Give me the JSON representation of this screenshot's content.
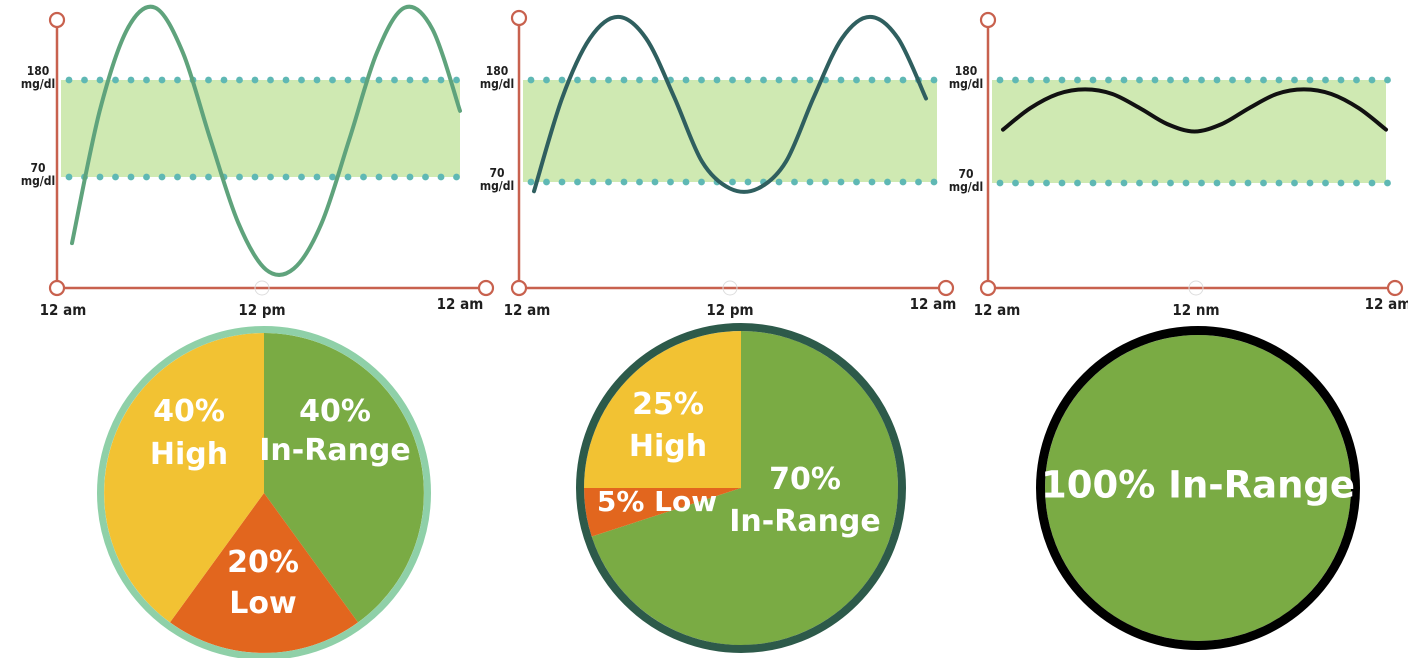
{
  "colors": {
    "axis": "#c8614e",
    "band": "#cfe9b2",
    "dots": "#5fb8b4",
    "green": "#7aab44",
    "yellow": "#f2c233",
    "orange": "#e2661e",
    "label_text": "#ffffff"
  },
  "chart_data": [
    {
      "type": "line",
      "title": "",
      "x_ticks": [
        "12 am",
        "12 pm",
        "12 am"
      ],
      "y_ticks": [
        {
          "value": 180,
          "line1": "180",
          "line2": "mg/dl"
        },
        {
          "value": 70,
          "line1": "70",
          "line2": "mg/dl"
        }
      ],
      "target_range": [
        70,
        180
      ],
      "series": [
        {
          "x": [
            0,
            1,
            2,
            3,
            4,
            5,
            6,
            7,
            8,
            9,
            10,
            11,
            12,
            13,
            14,
            15,
            16,
            17,
            18,
            19,
            20,
            21,
            22,
            23,
            24
          ],
          "y": [
            -5,
            145,
            238,
            262,
            211,
            112,
            18,
            -35,
            -34,
            17,
            112,
            211,
            262,
            238,
            145,
            12,
            -5,
            -5,
            -5,
            -5,
            -5,
            -5,
            -5,
            -5,
            -5
          ],
          "color": "#5fa37c"
        }
      ]
    },
    {
      "type": "line",
      "title": "",
      "x_ticks": [
        "12 am",
        "12 pm",
        "12 am"
      ],
      "y_ticks": [
        {
          "value": 180,
          "line1": "180",
          "line2": "mg/dl"
        },
        {
          "value": 70,
          "line1": "70",
          "line2": "mg/dl"
        }
      ],
      "target_range": [
        70,
        180
      ],
      "series": [
        {
          "x": [
            0,
            1,
            2,
            3,
            4,
            5,
            6,
            7,
            8,
            9,
            10,
            11,
            12,
            13,
            14,
            15,
            16,
            17,
            18,
            19,
            20,
            21,
            22,
            23,
            24
          ],
          "y": [
            60,
            160,
            225,
            248,
            225,
            162,
            92,
            63,
            63,
            92,
            162,
            225,
            248,
            225,
            160,
            60,
            60,
            60,
            60,
            60,
            60,
            60,
            60,
            60,
            60
          ],
          "color": "#2f5f5f"
        }
      ]
    },
    {
      "type": "line",
      "title": "",
      "x_ticks": [
        "12 am",
        "12 nm",
        "12 am"
      ],
      "y_ticks": [
        {
          "value": 180,
          "line1": "180",
          "line2": "mg/dl"
        },
        {
          "value": 70,
          "line1": "70",
          "line2": "mg/dl"
        }
      ],
      "target_range": [
        70,
        180
      ],
      "series": [
        {
          "x": [
            0,
            1,
            2,
            3,
            4,
            5,
            6,
            7,
            8,
            9,
            10,
            11,
            12,
            13,
            14,
            15,
            16,
            17,
            18,
            19,
            20,
            21,
            22,
            23,
            24
          ],
          "y": [
            127,
            150,
            165,
            170,
            165,
            150,
            133,
            125,
            133,
            150,
            165,
            170,
            165,
            150,
            127,
            127,
            127,
            127,
            127,
            127,
            127,
            127,
            127,
            127,
            127
          ],
          "color": "#111111"
        }
      ]
    },
    {
      "type": "pie",
      "title": "",
      "border_color": "#8fd0a8",
      "slices": [
        {
          "label": "In-Range",
          "value": 40,
          "color": "#7aab44",
          "text": [
            "40%",
            "In-Range"
          ]
        },
        {
          "label": "Low",
          "value": 20,
          "color": "#e2661e",
          "text": [
            "20%",
            "Low"
          ]
        },
        {
          "label": "High",
          "value": 40,
          "color": "#f2c233",
          "text": [
            "40%",
            "High"
          ]
        }
      ]
    },
    {
      "type": "pie",
      "title": "",
      "border_color": "#2d5a4a",
      "slices": [
        {
          "label": "In-Range",
          "value": 70,
          "color": "#7aab44",
          "text": [
            "70%",
            "In-Range"
          ]
        },
        {
          "label": "Low",
          "value": 5,
          "color": "#e2661e",
          "text": [
            "5% Low"
          ]
        },
        {
          "label": "High",
          "value": 25,
          "color": "#f2c233",
          "text": [
            "25%",
            "High"
          ]
        }
      ]
    },
    {
      "type": "pie",
      "title": "",
      "border_color": "#000000",
      "slices": [
        {
          "label": "In-Range",
          "value": 100,
          "color": "#7aab44",
          "text": [
            "100% In-Range"
          ]
        }
      ]
    }
  ]
}
